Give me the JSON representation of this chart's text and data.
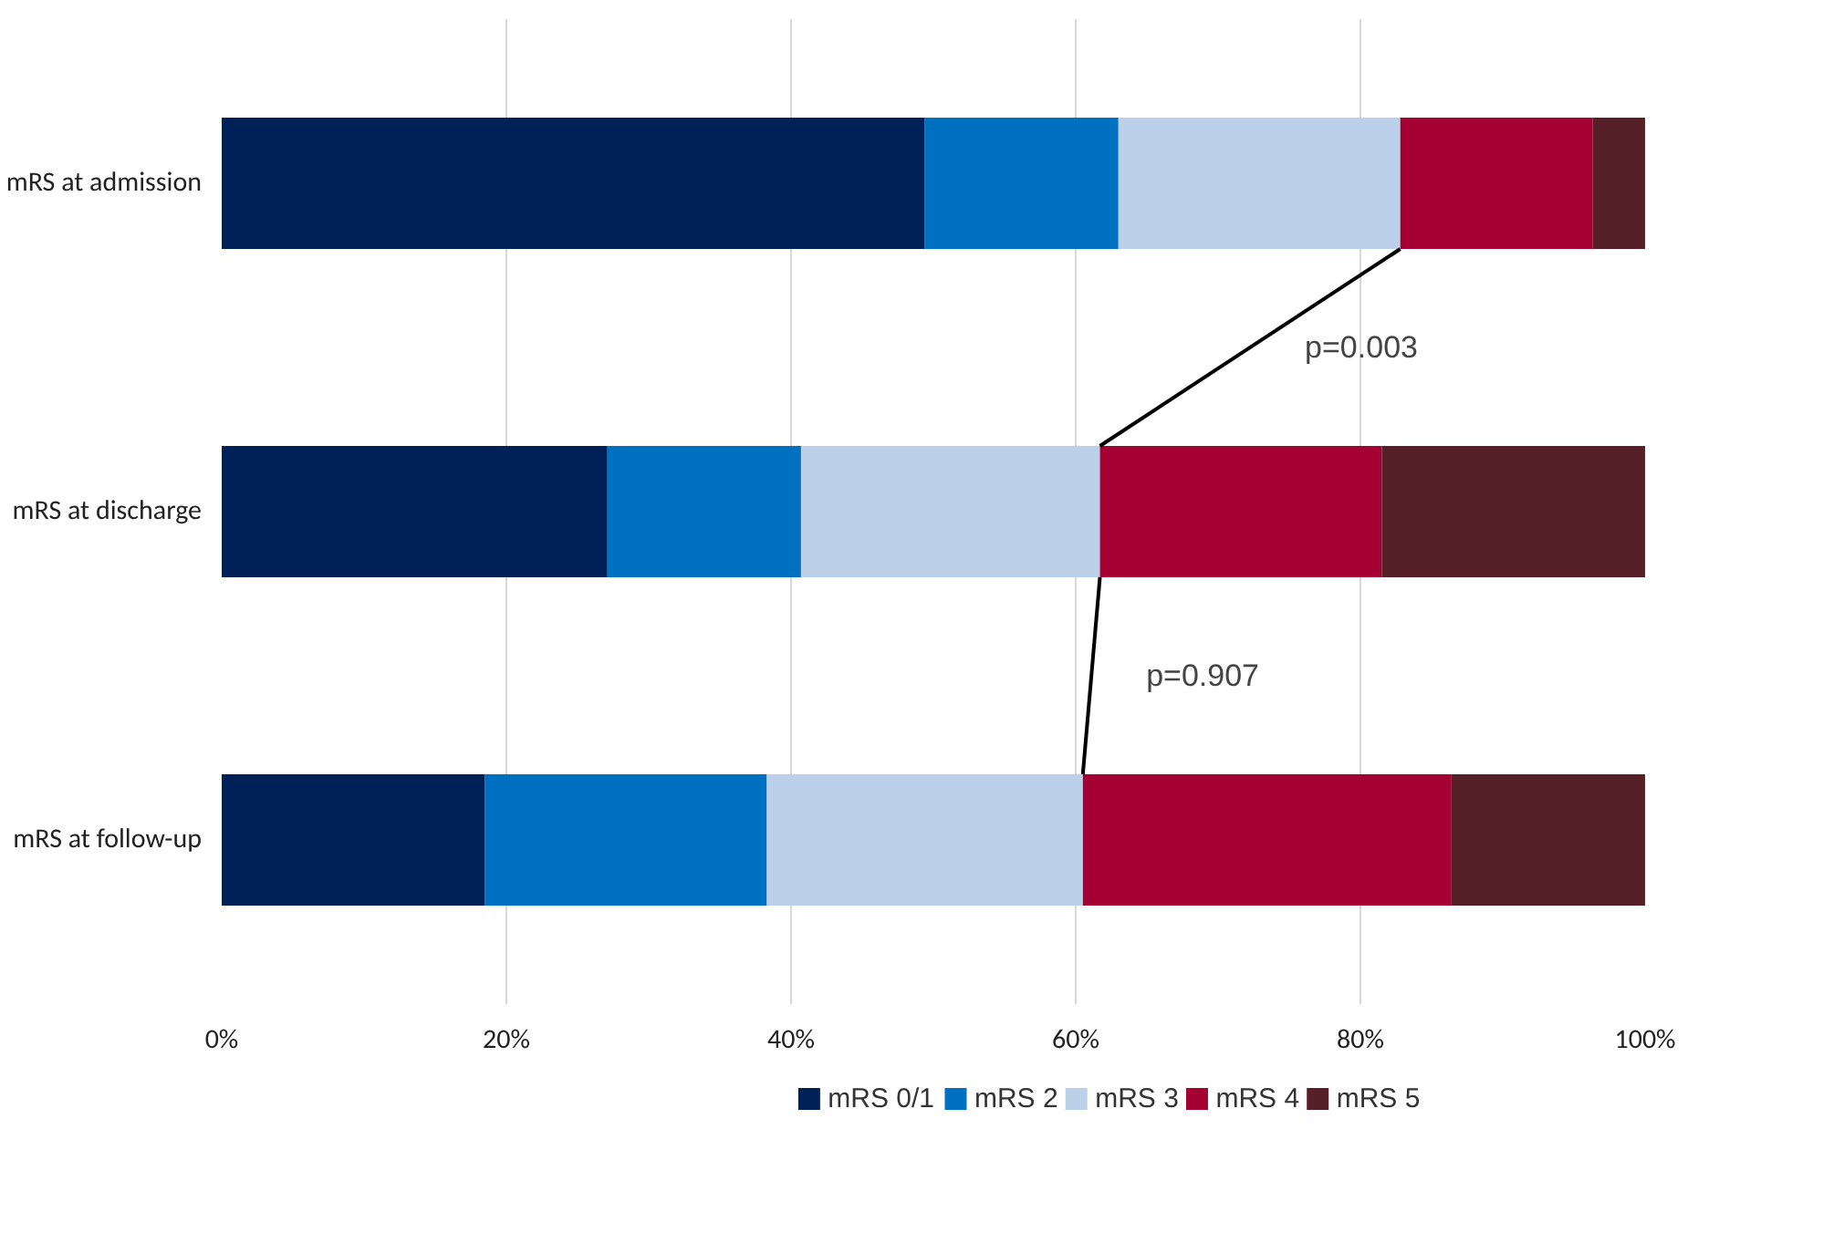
{
  "chart_data": {
    "type": "bar",
    "orientation": "horizontal",
    "stacked": true,
    "categories": [
      "mRS at admission",
      "mRS at discharge",
      "mRS at follow-up"
    ],
    "series": [
      {
        "name": "mRS 0/1",
        "color": "#002157",
        "values": [
          49.4,
          27.1,
          18.5
        ]
      },
      {
        "name": "mRS 2",
        "color": "#0070c0",
        "values": [
          13.6,
          13.6,
          19.8
        ]
      },
      {
        "name": "mRS 3",
        "color": "#bdd0ea",
        "values": [
          19.8,
          21.0,
          22.2
        ]
      },
      {
        "name": "mRS 4",
        "color": "#a50034",
        "values": [
          13.5,
          19.8,
          25.9
        ]
      },
      {
        "name": "mRS  5",
        "color": "#571f27",
        "values": [
          3.7,
          18.5,
          13.6
        ]
      }
    ],
    "xlim": [
      0,
      100
    ],
    "xticks": [
      {
        "value": 0,
        "label": "0%"
      },
      {
        "value": 20,
        "label": "20%"
      },
      {
        "value": 40,
        "label": "40%"
      },
      {
        "value": 60,
        "label": "60%"
      },
      {
        "value": 80,
        "label": "80%"
      },
      {
        "value": 100,
        "label": "100%"
      }
    ],
    "grid": "x",
    "legend": "bottom",
    "annotations": [
      "p=0.003",
      "p=0.907"
    ]
  }
}
